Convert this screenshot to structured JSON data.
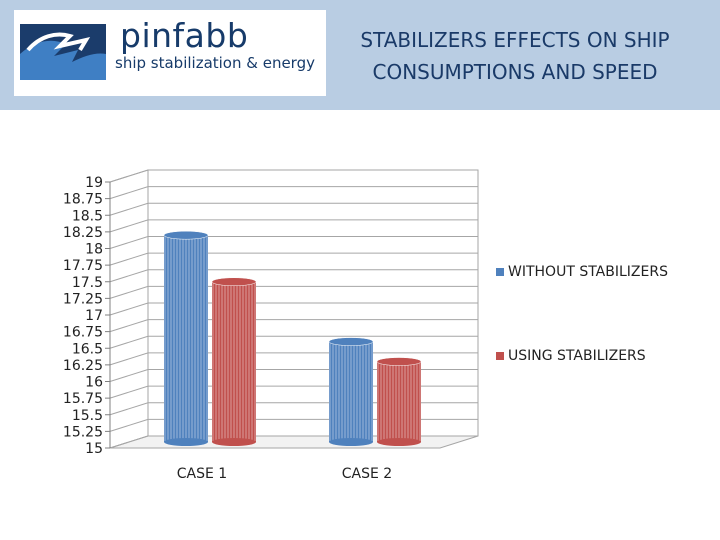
{
  "brand": {
    "name": "pinfabb",
    "tagline": "ship stabilization & energy"
  },
  "title_lines": [
    "STABILIZERS EFFECTS ON SHIP",
    "CONSUMPTIONS AND SPEED"
  ],
  "colors": {
    "header_bg": "#b9cde3",
    "series_blue": "#4f81bd",
    "series_red": "#c0504d"
  },
  "chart_data": {
    "type": "bar",
    "title": "STABILIZERS EFFECTS ON SHIP CONSUMPTIONS AND SPEED",
    "categories": [
      "CASE 1",
      "CASE 2"
    ],
    "series": [
      {
        "name": "WITHOUT STABILIZERS",
        "values": [
          18.2,
          16.6
        ]
      },
      {
        "name": "USING STABILIZERS",
        "values": [
          17.5,
          16.3
        ]
      }
    ],
    "ylim": [
      15,
      19
    ],
    "yticks": [
      "19",
      "18.75",
      "18.5",
      "18.25",
      "18",
      "17.75",
      "17.5",
      "17.25",
      "17",
      "16.75",
      "16.5",
      "16.25",
      "16",
      "15.75",
      "15.5",
      "15.25",
      "15"
    ],
    "grid": true,
    "legend": "right",
    "style": "3d-cylinder"
  }
}
